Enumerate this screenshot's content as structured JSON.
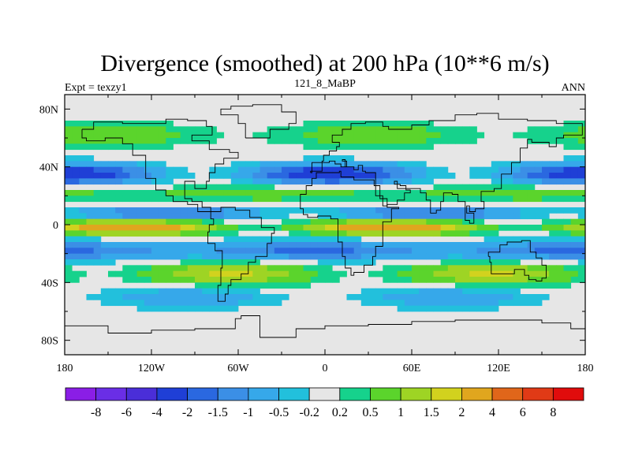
{
  "chart_data": {
    "type": "heatmap",
    "title": "Divergence (smoothed) at 200 hPa (10**6 m/s)",
    "subtitle_left": "Expt = texzy1",
    "subtitle_center": "121_8_MaBP",
    "subtitle_right": "ANN",
    "x_ticks": [
      "180",
      "120W",
      "60W",
      "0",
      "60E",
      "120E",
      "180"
    ],
    "y_ticks": [
      "80N",
      "40N",
      "0",
      "40S",
      "80S"
    ],
    "colorbar_labels": [
      "-8",
      "-6",
      "-4",
      "-2",
      "-1.5",
      "-1",
      "-0.5",
      "-0.2",
      "0.2",
      "0.5",
      "1",
      "1.5",
      "2",
      "4",
      "6",
      "8"
    ],
    "colorbar_colors": [
      "#8a1ee6",
      "#6a2ee6",
      "#4a2ed8",
      "#1f3fd6",
      "#2a68e0",
      "#3b8fe6",
      "#36a8ea",
      "#22c0dc",
      "#e6e6e6",
      "#16d28c",
      "#5bd42c",
      "#9ed424",
      "#d2d21e",
      "#e0a61e",
      "#e0661a",
      "#e03a16",
      "#e00c0c"
    ],
    "field_bands": [
      {
        "lat_center": 62,
        "amp": 0.55,
        "sign": 1
      },
      {
        "lat_center": 35,
        "amp": 1.4,
        "sign": -1
      },
      {
        "lat_center": 22,
        "amp": 0.7,
        "sign": 1
      },
      {
        "lat_center": 8,
        "amp": 1.1,
        "sign": -1
      },
      {
        "lat_center": -2,
        "amp": 1.6,
        "sign": 1
      },
      {
        "lat_center": -18,
        "amp": 1.3,
        "sign": -1
      },
      {
        "lat_center": -34,
        "amp": 0.9,
        "sign": 1
      },
      {
        "lat_center": -50,
        "amp": 0.5,
        "sign": -1
      }
    ]
  }
}
